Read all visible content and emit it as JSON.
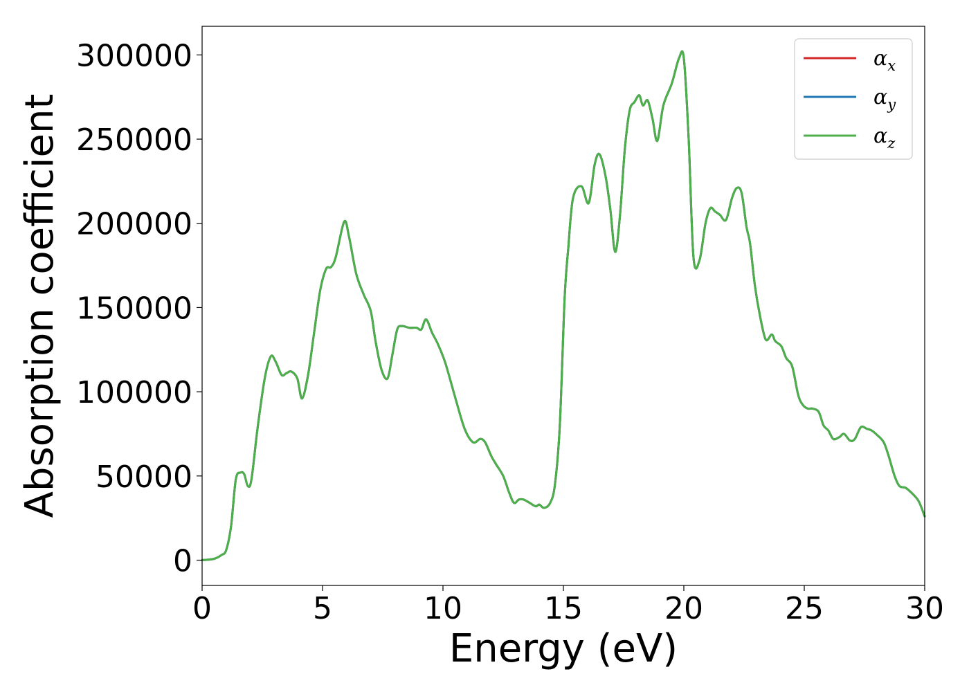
{
  "chart_data": {
    "type": "line",
    "title": "",
    "xlabel": "Energy (eV)",
    "ylabel": "Absorption coefficient",
    "xlim": [
      0,
      30
    ],
    "ylim": [
      -15000,
      317000
    ],
    "x_ticks": [
      0,
      5,
      10,
      15,
      20,
      25,
      30
    ],
    "x_tick_labels": [
      "0",
      "5",
      "10",
      "15",
      "20",
      "25",
      "30"
    ],
    "y_ticks": [
      0,
      50000,
      100000,
      150000,
      200000,
      250000,
      300000
    ],
    "y_tick_labels": [
      "0",
      "50000",
      "100000",
      "150000",
      "200000",
      "250000",
      "300000"
    ],
    "grid": false,
    "legend_position": "top-right",
    "x": [
      0,
      0.5,
      0.8,
      1.0,
      1.2,
      1.4,
      1.6,
      1.75,
      1.9,
      2.05,
      2.3,
      2.6,
      2.85,
      3.05,
      3.3,
      3.5,
      3.7,
      3.95,
      4.15,
      4.4,
      4.65,
      4.9,
      5.15,
      5.35,
      5.55,
      5.9,
      6.1,
      6.4,
      6.7,
      7.0,
      7.2,
      7.45,
      7.7,
      7.9,
      8.1,
      8.3,
      8.6,
      8.9,
      9.1,
      9.3,
      9.55,
      9.8,
      10.1,
      10.5,
      10.9,
      11.25,
      11.55,
      11.75,
      12.0,
      12.2,
      12.5,
      12.75,
      12.95,
      13.15,
      13.35,
      13.6,
      13.85,
      14.0,
      14.2,
      14.45,
      14.65,
      14.85,
      15.05,
      15.2,
      15.4,
      15.75,
      16.05,
      16.3,
      16.5,
      16.75,
      16.95,
      17.15,
      17.35,
      17.55,
      17.75,
      17.95,
      18.15,
      18.3,
      18.5,
      18.7,
      18.9,
      19.15,
      19.5,
      19.8,
      20.0,
      20.2,
      20.4,
      20.65,
      20.9,
      21.1,
      21.3,
      21.5,
      21.75,
      22.0,
      22.2,
      22.4,
      22.6,
      22.75,
      22.95,
      23.15,
      23.4,
      23.65,
      23.8,
      24.05,
      24.25,
      24.5,
      24.75,
      24.95,
      25.15,
      25.35,
      25.6,
      25.8,
      26.0,
      26.2,
      26.45,
      26.65,
      26.9,
      27.1,
      27.35,
      27.6,
      27.8,
      28.05,
      28.3,
      28.5,
      28.75,
      28.95,
      29.2,
      29.45,
      29.75,
      30.0
    ],
    "series": [
      {
        "name": "αx",
        "color": "#d62728",
        "values": [
          0,
          800,
          3000,
          6000,
          20000,
          48000,
          52000,
          51000,
          44000,
          48000,
          78000,
          108000,
          121000,
          118000,
          110000,
          111000,
          112000,
          108000,
          96000,
          110000,
          135000,
          160000,
          173000,
          174000,
          180000,
          201000,
          192000,
          170000,
          158000,
          148000,
          130000,
          113000,
          108000,
          122000,
          137000,
          139000,
          138000,
          138000,
          137000,
          143000,
          135000,
          128000,
          117000,
          97000,
          78000,
          70000,
          72000,
          70000,
          62000,
          57000,
          50000,
          40000,
          34000,
          36000,
          36000,
          34000,
          32000,
          33000,
          31000,
          34000,
          45000,
          80000,
          155000,
          185000,
          215000,
          222000,
          212000,
          235000,
          241000,
          228000,
          208000,
          183000,
          205000,
          244000,
          267000,
          272000,
          276000,
          270000,
          273000,
          262000,
          249000,
          270000,
          283000,
          298000,
          298000,
          250000,
          180000,
          178000,
          200000,
          209000,
          207000,
          205000,
          202000,
          215000,
          221000,
          218000,
          198000,
          188000,
          163000,
          146000,
          131000,
          134000,
          130000,
          127000,
          120000,
          115000,
          98000,
          92000,
          90000,
          90000,
          88000,
          80000,
          77000,
          72000,
          73000,
          75000,
          71000,
          72000,
          79000,
          78000,
          77000,
          74000,
          70000,
          62000,
          50000,
          44000,
          43000,
          40000,
          35000,
          26000
        ]
      },
      {
        "name": "αy",
        "color": "#1f77b4",
        "values": [
          0,
          800,
          3000,
          6000,
          20000,
          48000,
          52000,
          51000,
          44000,
          48000,
          78000,
          108000,
          121000,
          118000,
          110000,
          111000,
          112000,
          108000,
          96000,
          110000,
          135000,
          160000,
          173000,
          174000,
          180000,
          201000,
          192000,
          170000,
          158000,
          148000,
          130000,
          113000,
          108000,
          122000,
          137000,
          139000,
          138000,
          138000,
          137000,
          143000,
          135000,
          128000,
          117000,
          97000,
          78000,
          70000,
          72000,
          70000,
          62000,
          57000,
          50000,
          40000,
          34000,
          36000,
          36000,
          34000,
          32000,
          33000,
          31000,
          34000,
          45000,
          80000,
          155000,
          185000,
          215000,
          222000,
          212000,
          235000,
          241000,
          228000,
          208000,
          183000,
          205000,
          244000,
          267000,
          272000,
          276000,
          270000,
          273000,
          262000,
          249000,
          270000,
          283000,
          298000,
          298000,
          250000,
          180000,
          178000,
          200000,
          209000,
          207000,
          205000,
          202000,
          215000,
          221000,
          218000,
          198000,
          188000,
          163000,
          146000,
          131000,
          134000,
          130000,
          127000,
          120000,
          115000,
          98000,
          92000,
          90000,
          90000,
          88000,
          80000,
          77000,
          72000,
          73000,
          75000,
          71000,
          72000,
          79000,
          78000,
          77000,
          74000,
          70000,
          62000,
          50000,
          44000,
          43000,
          40000,
          35000,
          26000
        ]
      },
      {
        "name": "αz",
        "color": "#4daf4a",
        "values": [
          0,
          800,
          3000,
          6000,
          20000,
          48000,
          52000,
          51000,
          44000,
          48000,
          78000,
          108000,
          121000,
          118000,
          110000,
          111000,
          112000,
          108000,
          96000,
          110000,
          135000,
          160000,
          173000,
          174000,
          180000,
          201000,
          192000,
          170000,
          158000,
          148000,
          130000,
          113000,
          108000,
          122000,
          137000,
          139000,
          138000,
          138000,
          137000,
          143000,
          135000,
          128000,
          117000,
          97000,
          78000,
          70000,
          72000,
          70000,
          62000,
          57000,
          50000,
          40000,
          34000,
          36000,
          36000,
          34000,
          32000,
          33000,
          31000,
          34000,
          45000,
          80000,
          155000,
          185000,
          215000,
          222000,
          212000,
          235000,
          241000,
          228000,
          208000,
          183000,
          205000,
          244000,
          267000,
          272000,
          276000,
          270000,
          273000,
          262000,
          249000,
          270000,
          283000,
          298000,
          298000,
          250000,
          180000,
          178000,
          200000,
          209000,
          207000,
          205000,
          202000,
          215000,
          221000,
          218000,
          198000,
          188000,
          163000,
          146000,
          131000,
          134000,
          130000,
          127000,
          120000,
          115000,
          98000,
          92000,
          90000,
          90000,
          88000,
          80000,
          77000,
          72000,
          73000,
          75000,
          71000,
          72000,
          79000,
          78000,
          77000,
          74000,
          70000,
          62000,
          50000,
          44000,
          43000,
          40000,
          35000,
          26000
        ]
      }
    ],
    "legend": [
      {
        "symbol": "α",
        "subscript": "x",
        "color": "#d62728"
      },
      {
        "symbol": "α",
        "subscript": "y",
        "color": "#1f77b4"
      },
      {
        "symbol": "α",
        "subscript": "z",
        "color": "#4daf4a"
      }
    ]
  }
}
